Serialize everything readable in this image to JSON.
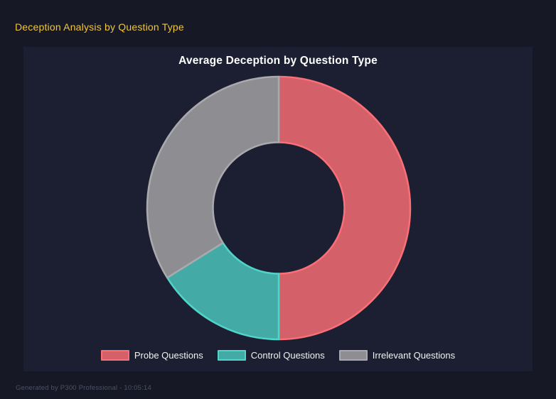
{
  "page": {
    "header_title": "Deception Analysis by Question Type",
    "footer": "Generated by P300 Professional - 10:05:14"
  },
  "colors": {
    "page_bg": "#161826",
    "panel_bg": "#1c1f31",
    "header_title_text": "#f0c63c",
    "chart_title_text": "#ffffff",
    "legend_text": "#f2f2f2",
    "footer_text": "#4d5163"
  },
  "chart_data": {
    "type": "pie",
    "subtype": "donut",
    "title": "Average Deception by Question Type",
    "cutout_pct": 50,
    "start_angle_deg": 0,
    "legend_position": "bottom",
    "categories": [
      "Probe Questions",
      "Control Questions",
      "Irrelevant Questions"
    ],
    "values_pct_of_total": [
      50.0,
      16.1,
      33.9
    ],
    "segments": [
      {
        "label": "Probe Questions",
        "pct": 50.0,
        "fill": "#d4606a",
        "border": "#fb6f77"
      },
      {
        "label": "Control Questions",
        "pct": 16.1,
        "fill": "#44aaa5",
        "border": "#4fd6cb"
      },
      {
        "label": "Irrelevant Questions",
        "pct": 33.9,
        "fill": "#8e8e92",
        "border": "#aaaaae"
      }
    ]
  }
}
